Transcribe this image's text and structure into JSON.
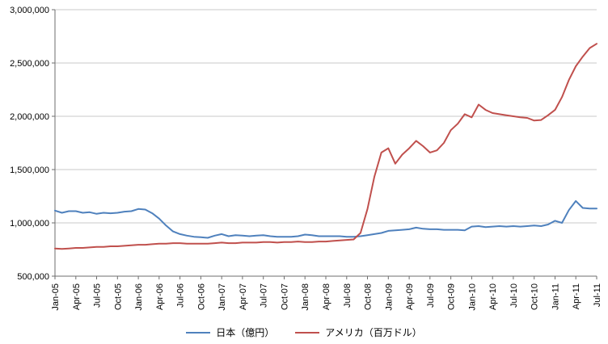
{
  "chart_data": {
    "type": "line",
    "title": "",
    "xlabel": "",
    "ylabel": "",
    "ylim": [
      500000,
      3000000
    ],
    "grid": true,
    "legend_position": "bottom",
    "x_label_every": 3,
    "y_ticks": [
      500000,
      1000000,
      1500000,
      2000000,
      2500000,
      3000000
    ],
    "y_tick_labels": [
      "500,000",
      "1,000,000",
      "1,500,000",
      "2,000,000",
      "2,500,000",
      "3,000,000"
    ],
    "colors": {
      "grid": "#c9c9c9",
      "axis": "#6e6e6e",
      "japan_blue": "#4f81bd",
      "usa_red": "#c0504d"
    },
    "categories": [
      "Jan-05",
      "Feb-05",
      "Mar-05",
      "Apr-05",
      "May-05",
      "Jun-05",
      "Jul-05",
      "Aug-05",
      "Sep-05",
      "Oct-05",
      "Nov-05",
      "Dec-05",
      "Jan-06",
      "Feb-06",
      "Mar-06",
      "Apr-06",
      "May-06",
      "Jun-06",
      "Jul-06",
      "Aug-06",
      "Sep-06",
      "Oct-06",
      "Nov-06",
      "Dec-06",
      "Jan-07",
      "Feb-07",
      "Mar-07",
      "Apr-07",
      "May-07",
      "Jun-07",
      "Jul-07",
      "Aug-07",
      "Sep-07",
      "Oct-07",
      "Nov-07",
      "Dec-07",
      "Jan-08",
      "Feb-08",
      "Mar-08",
      "Apr-08",
      "May-08",
      "Jun-08",
      "Jul-08",
      "Aug-08",
      "Sep-08",
      "Oct-08",
      "Nov-08",
      "Dec-08",
      "Jan-09",
      "Feb-09",
      "Mar-09",
      "Apr-09",
      "May-09",
      "Jun-09",
      "Jul-09",
      "Aug-09",
      "Sep-09",
      "Oct-09",
      "Nov-09",
      "Dec-09",
      "Jan-10",
      "Feb-10",
      "Mar-10",
      "Apr-10",
      "May-10",
      "Jun-10",
      "Jul-10",
      "Aug-10",
      "Sep-10",
      "Oct-10",
      "Nov-10",
      "Dec-10",
      "Jan-11",
      "Feb-11",
      "Mar-11",
      "Apr-11",
      "May-11",
      "Jun-11",
      "Jul-11"
    ],
    "series": [
      {
        "name": "日本（億円）",
        "color": "#4f81bd",
        "values": [
          1115000,
          1095000,
          1110000,
          1110000,
          1095000,
          1100000,
          1085000,
          1095000,
          1090000,
          1095000,
          1105000,
          1110000,
          1130000,
          1125000,
          1090000,
          1040000,
          975000,
          920000,
          895000,
          880000,
          870000,
          865000,
          860000,
          880000,
          895000,
          875000,
          885000,
          880000,
          875000,
          880000,
          885000,
          875000,
          870000,
          870000,
          870000,
          875000,
          890000,
          885000,
          875000,
          875000,
          875000,
          875000,
          870000,
          870000,
          875000,
          885000,
          895000,
          905000,
          925000,
          930000,
          935000,
          940000,
          955000,
          945000,
          940000,
          940000,
          935000,
          935000,
          935000,
          930000,
          965000,
          970000,
          960000,
          965000,
          970000,
          965000,
          970000,
          965000,
          970000,
          975000,
          970000,
          985000,
          1020000,
          1000000,
          1120000,
          1205000,
          1140000,
          1135000,
          1135000
        ]
      },
      {
        "name": "アメリカ（百万ドル）",
        "color": "#c0504d",
        "values": [
          760000,
          755000,
          760000,
          765000,
          765000,
          770000,
          775000,
          775000,
          780000,
          780000,
          785000,
          790000,
          795000,
          795000,
          800000,
          805000,
          805000,
          810000,
          810000,
          805000,
          805000,
          805000,
          805000,
          810000,
          815000,
          810000,
          810000,
          815000,
          815000,
          815000,
          820000,
          820000,
          815000,
          820000,
          820000,
          825000,
          820000,
          820000,
          825000,
          825000,
          830000,
          835000,
          840000,
          845000,
          905000,
          1130000,
          1435000,
          1660000,
          1700000,
          1555000,
          1640000,
          1700000,
          1770000,
          1720000,
          1660000,
          1680000,
          1750000,
          1870000,
          1930000,
          2020000,
          1990000,
          2110000,
          2060000,
          2030000,
          2020000,
          2010000,
          2000000,
          1990000,
          1985000,
          1960000,
          1965000,
          2010000,
          2060000,
          2180000,
          2340000,
          2470000,
          2560000,
          2640000,
          2680000
        ]
      }
    ]
  }
}
